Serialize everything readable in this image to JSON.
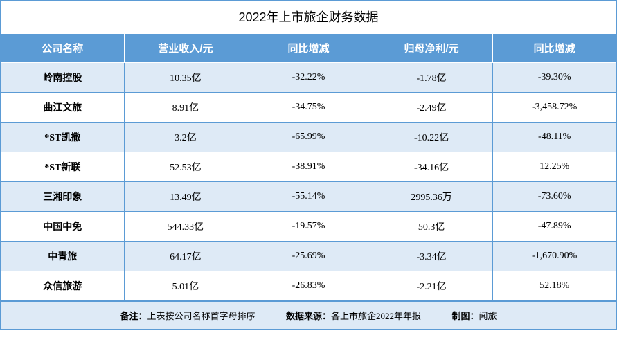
{
  "title": "2022年上市旅企财务数据",
  "columns": [
    "公司名称",
    "营业收入/元",
    "同比增减",
    "归母净利/元",
    "同比增减"
  ],
  "rows": [
    {
      "company": "岭南控股",
      "revenue": "10.35亿",
      "rev_yoy": "-32.22%",
      "profit": "-1.78亿",
      "prof_yoy": "-39.30%"
    },
    {
      "company": "曲江文旅",
      "revenue": "8.91亿",
      "rev_yoy": "-34.75%",
      "profit": "-2.49亿",
      "prof_yoy": "-3,458.72%"
    },
    {
      "company": "*ST凯撒",
      "revenue": "3.2亿",
      "rev_yoy": "-65.99%",
      "profit": "-10.22亿",
      "prof_yoy": "-48.11%"
    },
    {
      "company": "*ST新联",
      "revenue": "52.53亿",
      "rev_yoy": "-38.91%",
      "profit": "-34.16亿",
      "prof_yoy": "12.25%"
    },
    {
      "company": "三湘印象",
      "revenue": "13.49亿",
      "rev_yoy": "-55.14%",
      "profit": "2995.36万",
      "prof_yoy": "-73.60%"
    },
    {
      "company": "中国中免",
      "revenue": "544.33亿",
      "rev_yoy": "-19.57%",
      "profit": "50.3亿",
      "prof_yoy": "-47.89%"
    },
    {
      "company": "中青旅",
      "revenue": "64.17亿",
      "rev_yoy": "-25.69%",
      "profit": "-3.34亿",
      "prof_yoy": "-1,670.90%"
    },
    {
      "company": "众信旅游",
      "revenue": "5.01亿",
      "rev_yoy": "-26.83%",
      "profit": "-2.21亿",
      "prof_yoy": "52.18%"
    }
  ],
  "footer": {
    "note_label": "备注：",
    "note_text": "上表按公司名称首字母排序",
    "source_label": "数据来源：",
    "source_text": "各上市旅企2022年年报",
    "author_label": "制图：",
    "author_text": "闻旅"
  },
  "colors": {
    "header_bg": "#5b9bd5",
    "header_text": "#ffffff",
    "row_odd_bg": "#deeaf6",
    "row_even_bg": "#ffffff",
    "border": "#5b9bd5"
  }
}
